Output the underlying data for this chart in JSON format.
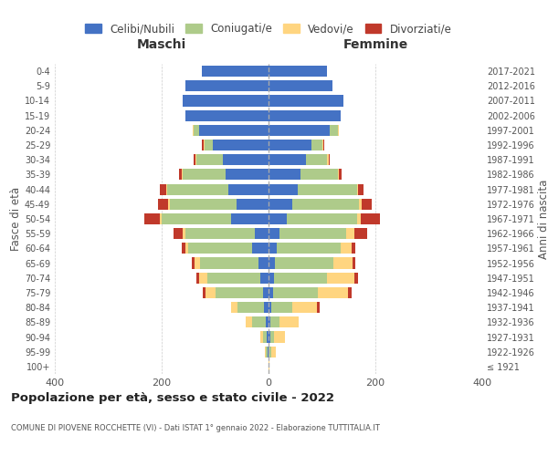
{
  "age_groups": [
    "100+",
    "95-99",
    "90-94",
    "85-89",
    "80-84",
    "75-79",
    "70-74",
    "65-69",
    "60-64",
    "55-59",
    "50-54",
    "45-49",
    "40-44",
    "35-39",
    "30-34",
    "25-29",
    "20-24",
    "15-19",
    "10-14",
    "5-9",
    "0-4"
  ],
  "birth_years": [
    "≤ 1921",
    "1922-1926",
    "1927-1931",
    "1932-1936",
    "1937-1941",
    "1942-1946",
    "1947-1951",
    "1952-1956",
    "1957-1961",
    "1962-1966",
    "1967-1971",
    "1972-1976",
    "1977-1981",
    "1982-1986",
    "1987-1991",
    "1992-1996",
    "1997-2001",
    "2002-2006",
    "2007-2011",
    "2012-2016",
    "2017-2021"
  ],
  "males": {
    "celibi": [
      0,
      2,
      3,
      5,
      8,
      10,
      15,
      18,
      30,
      25,
      70,
      60,
      75,
      80,
      85,
      105,
      130,
      155,
      160,
      155,
      125
    ],
    "coniugati": [
      0,
      3,
      8,
      25,
      50,
      90,
      100,
      110,
      120,
      130,
      130,
      125,
      115,
      80,
      50,
      15,
      10,
      0,
      0,
      0,
      0
    ],
    "vedovi": [
      0,
      2,
      5,
      12,
      12,
      18,
      15,
      10,
      5,
      5,
      3,
      3,
      2,
      2,
      2,
      2,
      2,
      0,
      0,
      0,
      0
    ],
    "divorziati": [
      0,
      0,
      0,
      0,
      0,
      5,
      5,
      5,
      8,
      18,
      30,
      18,
      12,
      5,
      3,
      2,
      0,
      0,
      0,
      0,
      0
    ]
  },
  "females": {
    "nubili": [
      0,
      0,
      3,
      3,
      5,
      8,
      10,
      12,
      15,
      20,
      35,
      45,
      55,
      60,
      70,
      80,
      115,
      135,
      140,
      120,
      110
    ],
    "coniugate": [
      0,
      5,
      8,
      18,
      40,
      85,
      100,
      110,
      120,
      125,
      130,
      125,
      110,
      70,
      40,
      20,
      15,
      0,
      0,
      0,
      0
    ],
    "vedove": [
      1,
      8,
      20,
      35,
      45,
      55,
      50,
      35,
      20,
      15,
      8,
      5,
      3,
      2,
      2,
      2,
      2,
      0,
      0,
      0,
      0
    ],
    "divorziate": [
      0,
      0,
      0,
      0,
      5,
      8,
      8,
      5,
      8,
      25,
      35,
      18,
      10,
      5,
      3,
      2,
      0,
      0,
      0,
      0,
      0
    ]
  },
  "colors": {
    "celibi_nubili": "#4472C4",
    "coniugati": "#AECB8A",
    "vedovi": "#FFD580",
    "divorziati": "#C0392B"
  },
  "xlim": 400,
  "title": "Popolazione per età, sesso e stato civile - 2022",
  "subtitle": "COMUNE DI PIOVENE ROCCHETTE (VI) - Dati ISTAT 1° gennaio 2022 - Elaborazione TUTTITALIA.IT",
  "ylabel": "Fasce di età",
  "ylabel_right": "Anni di nascita",
  "legend_labels": [
    "Celibi/Nubili",
    "Coniugati/e",
    "Vedovi/e",
    "Divorziati/e"
  ],
  "maschi_label": "Maschi",
  "femmine_label": "Femmine",
  "background_color": "#ffffff"
}
